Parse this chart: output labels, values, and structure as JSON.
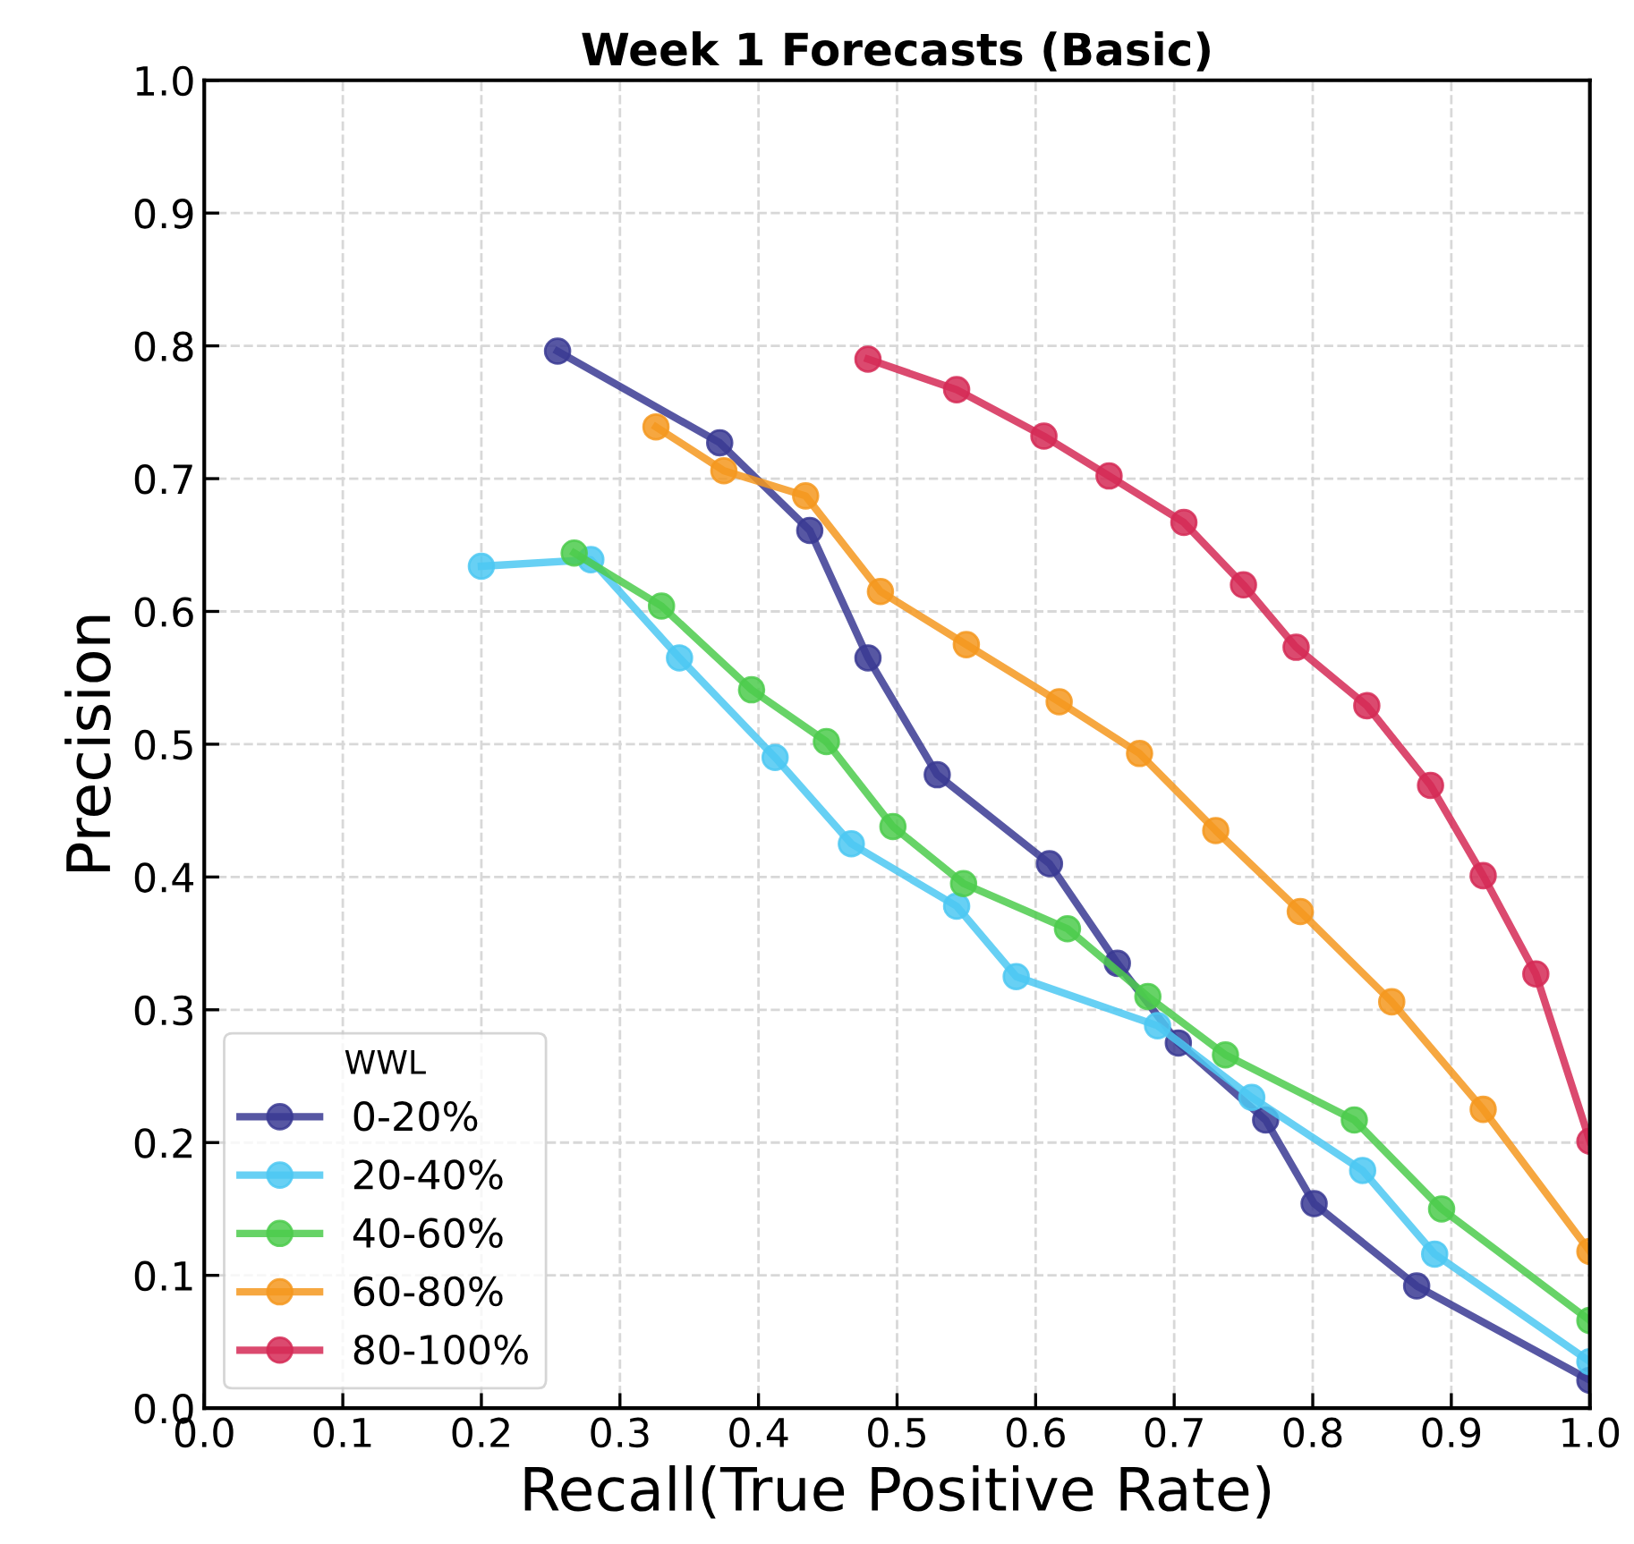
{
  "chart_data": {
    "type": "line",
    "title": "Week 1 Forecasts (Basic)",
    "xlabel": "Recall(True Positive Rate)",
    "ylabel": "Precision",
    "legend_title": "WWL",
    "xlim": [
      0.0,
      1.0
    ],
    "ylim": [
      0.0,
      1.0
    ],
    "xticks": [
      {
        "value": 0,
        "label": "0.0"
      },
      0.1,
      0.2,
      0.3,
      0.4,
      0.5,
      0.6,
      0.7,
      0.8,
      0.9,
      {
        "value": 1,
        "label": "1.0"
      }
    ],
    "yticks": [
      {
        "value": 0,
        "label": "0.0"
      },
      0.1,
      0.2,
      0.3,
      0.4,
      0.5,
      0.6,
      0.7,
      0.8,
      0.9,
      {
        "value": 1,
        "label": "1.0"
      }
    ],
    "grid": true,
    "legend": "bottom left",
    "marker": "circle",
    "line_style": "solid",
    "series": [
      {
        "name": "0-20%",
        "color": "#3a3a93",
        "x": [
          0.255,
          0.372,
          0.437,
          0.479,
          0.529,
          0.61,
          0.659,
          0.703,
          0.766,
          0.801,
          0.875,
          1.0
        ],
        "values": [
          0.796,
          0.727,
          0.661,
          0.565,
          0.477,
          0.41,
          0.335,
          0.275,
          0.217,
          0.154,
          0.092,
          0.021
        ]
      },
      {
        "name": "20-40%",
        "color": "#4cc8f2",
        "x": [
          0.2,
          0.279,
          0.343,
          0.412,
          0.467,
          0.543,
          0.586,
          0.688,
          0.756,
          0.836,
          0.888,
          1.0
        ],
        "values": [
          0.634,
          0.639,
          0.565,
          0.49,
          0.425,
          0.378,
          0.325,
          0.288,
          0.234,
          0.179,
          0.116,
          0.035
        ]
      },
      {
        "name": "40-60%",
        "color": "#4ccb4c",
        "x": [
          0.267,
          0.33,
          0.395,
          0.449,
          0.497,
          0.548,
          0.623,
          0.681,
          0.737,
          0.83,
          0.893,
          1.0
        ],
        "values": [
          0.644,
          0.604,
          0.541,
          0.502,
          0.438,
          0.395,
          0.361,
          0.31,
          0.266,
          0.217,
          0.15,
          0.066
        ]
      },
      {
        "name": "60-80%",
        "color": "#f5981f",
        "x": [
          0.326,
          0.375,
          0.434,
          0.488,
          0.55,
          0.617,
          0.675,
          0.73,
          0.791,
          0.857,
          0.923,
          1.0
        ],
        "values": [
          0.739,
          0.706,
          0.687,
          0.615,
          0.575,
          0.532,
          0.493,
          0.435,
          0.374,
          0.306,
          0.225,
          0.118
        ]
      },
      {
        "name": "80-100%",
        "color": "#d52a56",
        "x": [
          0.479,
          0.543,
          0.606,
          0.653,
          0.707,
          0.75,
          0.788,
          0.839,
          0.885,
          0.923,
          0.961,
          1.0
        ],
        "values": [
          0.79,
          0.767,
          0.732,
          0.702,
          0.667,
          0.62,
          0.573,
          0.529,
          0.469,
          0.401,
          0.327,
          0.201
        ]
      }
    ]
  }
}
